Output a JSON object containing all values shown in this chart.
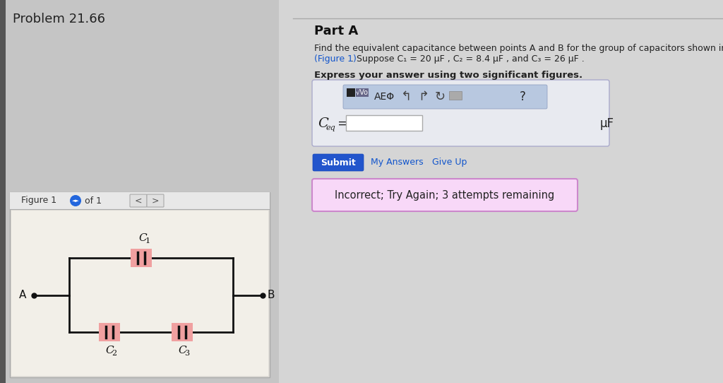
{
  "bg_color": "#d0d0d0",
  "left_panel_bg": "#c8c8c8",
  "right_panel_bg": "#d8d8d8",
  "problem_title": "Problem 21.66",
  "part_a_title": "Part A",
  "description_line1": "Find the equivalent capacitance between points A and B for the group of capacitors shown in the figure",
  "description_line2": ". Suppose C₁ = 20 μF , C₂ = 8.4 μF , and C₃ = 26 μF .",
  "figure1_link": "(Figure 1)",
  "express_text": "Express your answer using two significant figures.",
  "unit_label": "μF",
  "submit_text": "Submit",
  "my_answers_text": "My Answers",
  "give_up_text": "Give Up",
  "incorrect_text": "Incorrect; Try Again; 3 attempts remaining",
  "figure_label": "Figure 1",
  "of_1_text": "of 1",
  "cap_color": "#f0a0a0",
  "circuit_bg": "#f2efe8",
  "dark_strip": "#555555",
  "separator_color": "#aaaaaa"
}
